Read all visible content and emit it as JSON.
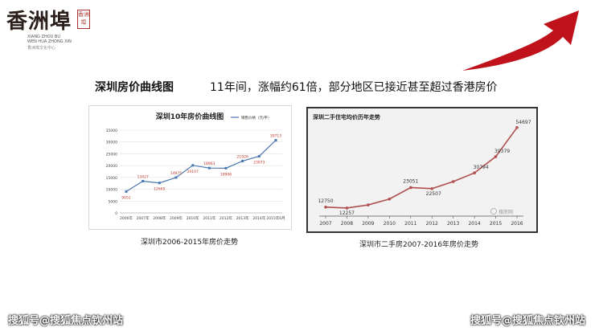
{
  "logo": {
    "name": "香洲埠",
    "seal": "香洲埠",
    "en_line1": "XIANG ZHOU BU",
    "en_line2": "WEN HUA ZHONG XIN",
    "cn_line": "香洲埠文化中心"
  },
  "heading": "深圳房价曲线图",
  "subheading": "11年间，涨幅约61倍，部分地区已接近甚至超过香港房价",
  "chart_data": [
    {
      "type": "line",
      "title": "深圳10年房价曲线图",
      "categories": [
        "2006年",
        "2007年",
        "2008年",
        "2009年",
        "2010年",
        "2011年",
        "2012年",
        "2013年",
        "2014年",
        "2015年6月"
      ],
      "series": [
        {
          "name": "销售价格（元/平）",
          "values": [
            9051,
            13427,
            12665,
            14975,
            20107,
            18963,
            18906,
            21926,
            23973,
            30713
          ]
        }
      ],
      "ylim": [
        0,
        35000
      ],
      "yticks": [
        0,
        5000,
        10000,
        15000,
        20000,
        25000,
        30000,
        35000
      ],
      "grid": true,
      "legend": "top-right",
      "caption": "深圳市2006-2015年房价走势",
      "colors": {
        "line": "#4a78b0"
      }
    },
    {
      "type": "line",
      "title": "深圳二手住宅均价历年走势",
      "categories": [
        "2007",
        "2008",
        "2009",
        "2010",
        "2011",
        "2012",
        "2013",
        "2014",
        "2015",
        "2016"
      ],
      "series": [
        {
          "values": [
            12750,
            12257,
            13900,
            17000,
            23051,
            22507,
            26200,
            30794,
            39379,
            54697
          ]
        }
      ],
      "labels": [
        "12750",
        "12257",
        "23051",
        "22507",
        "30794",
        "39379",
        "54697"
      ],
      "watermark": "搜房网",
      "caption": "深圳市二手房2007-2016年房价走势",
      "colors": {
        "line": "#b05050"
      }
    }
  ],
  "footer": {
    "left": "搜狐号@搜狐焦点钦州站",
    "right": "搜狐号@搜狐焦点钦州站"
  }
}
